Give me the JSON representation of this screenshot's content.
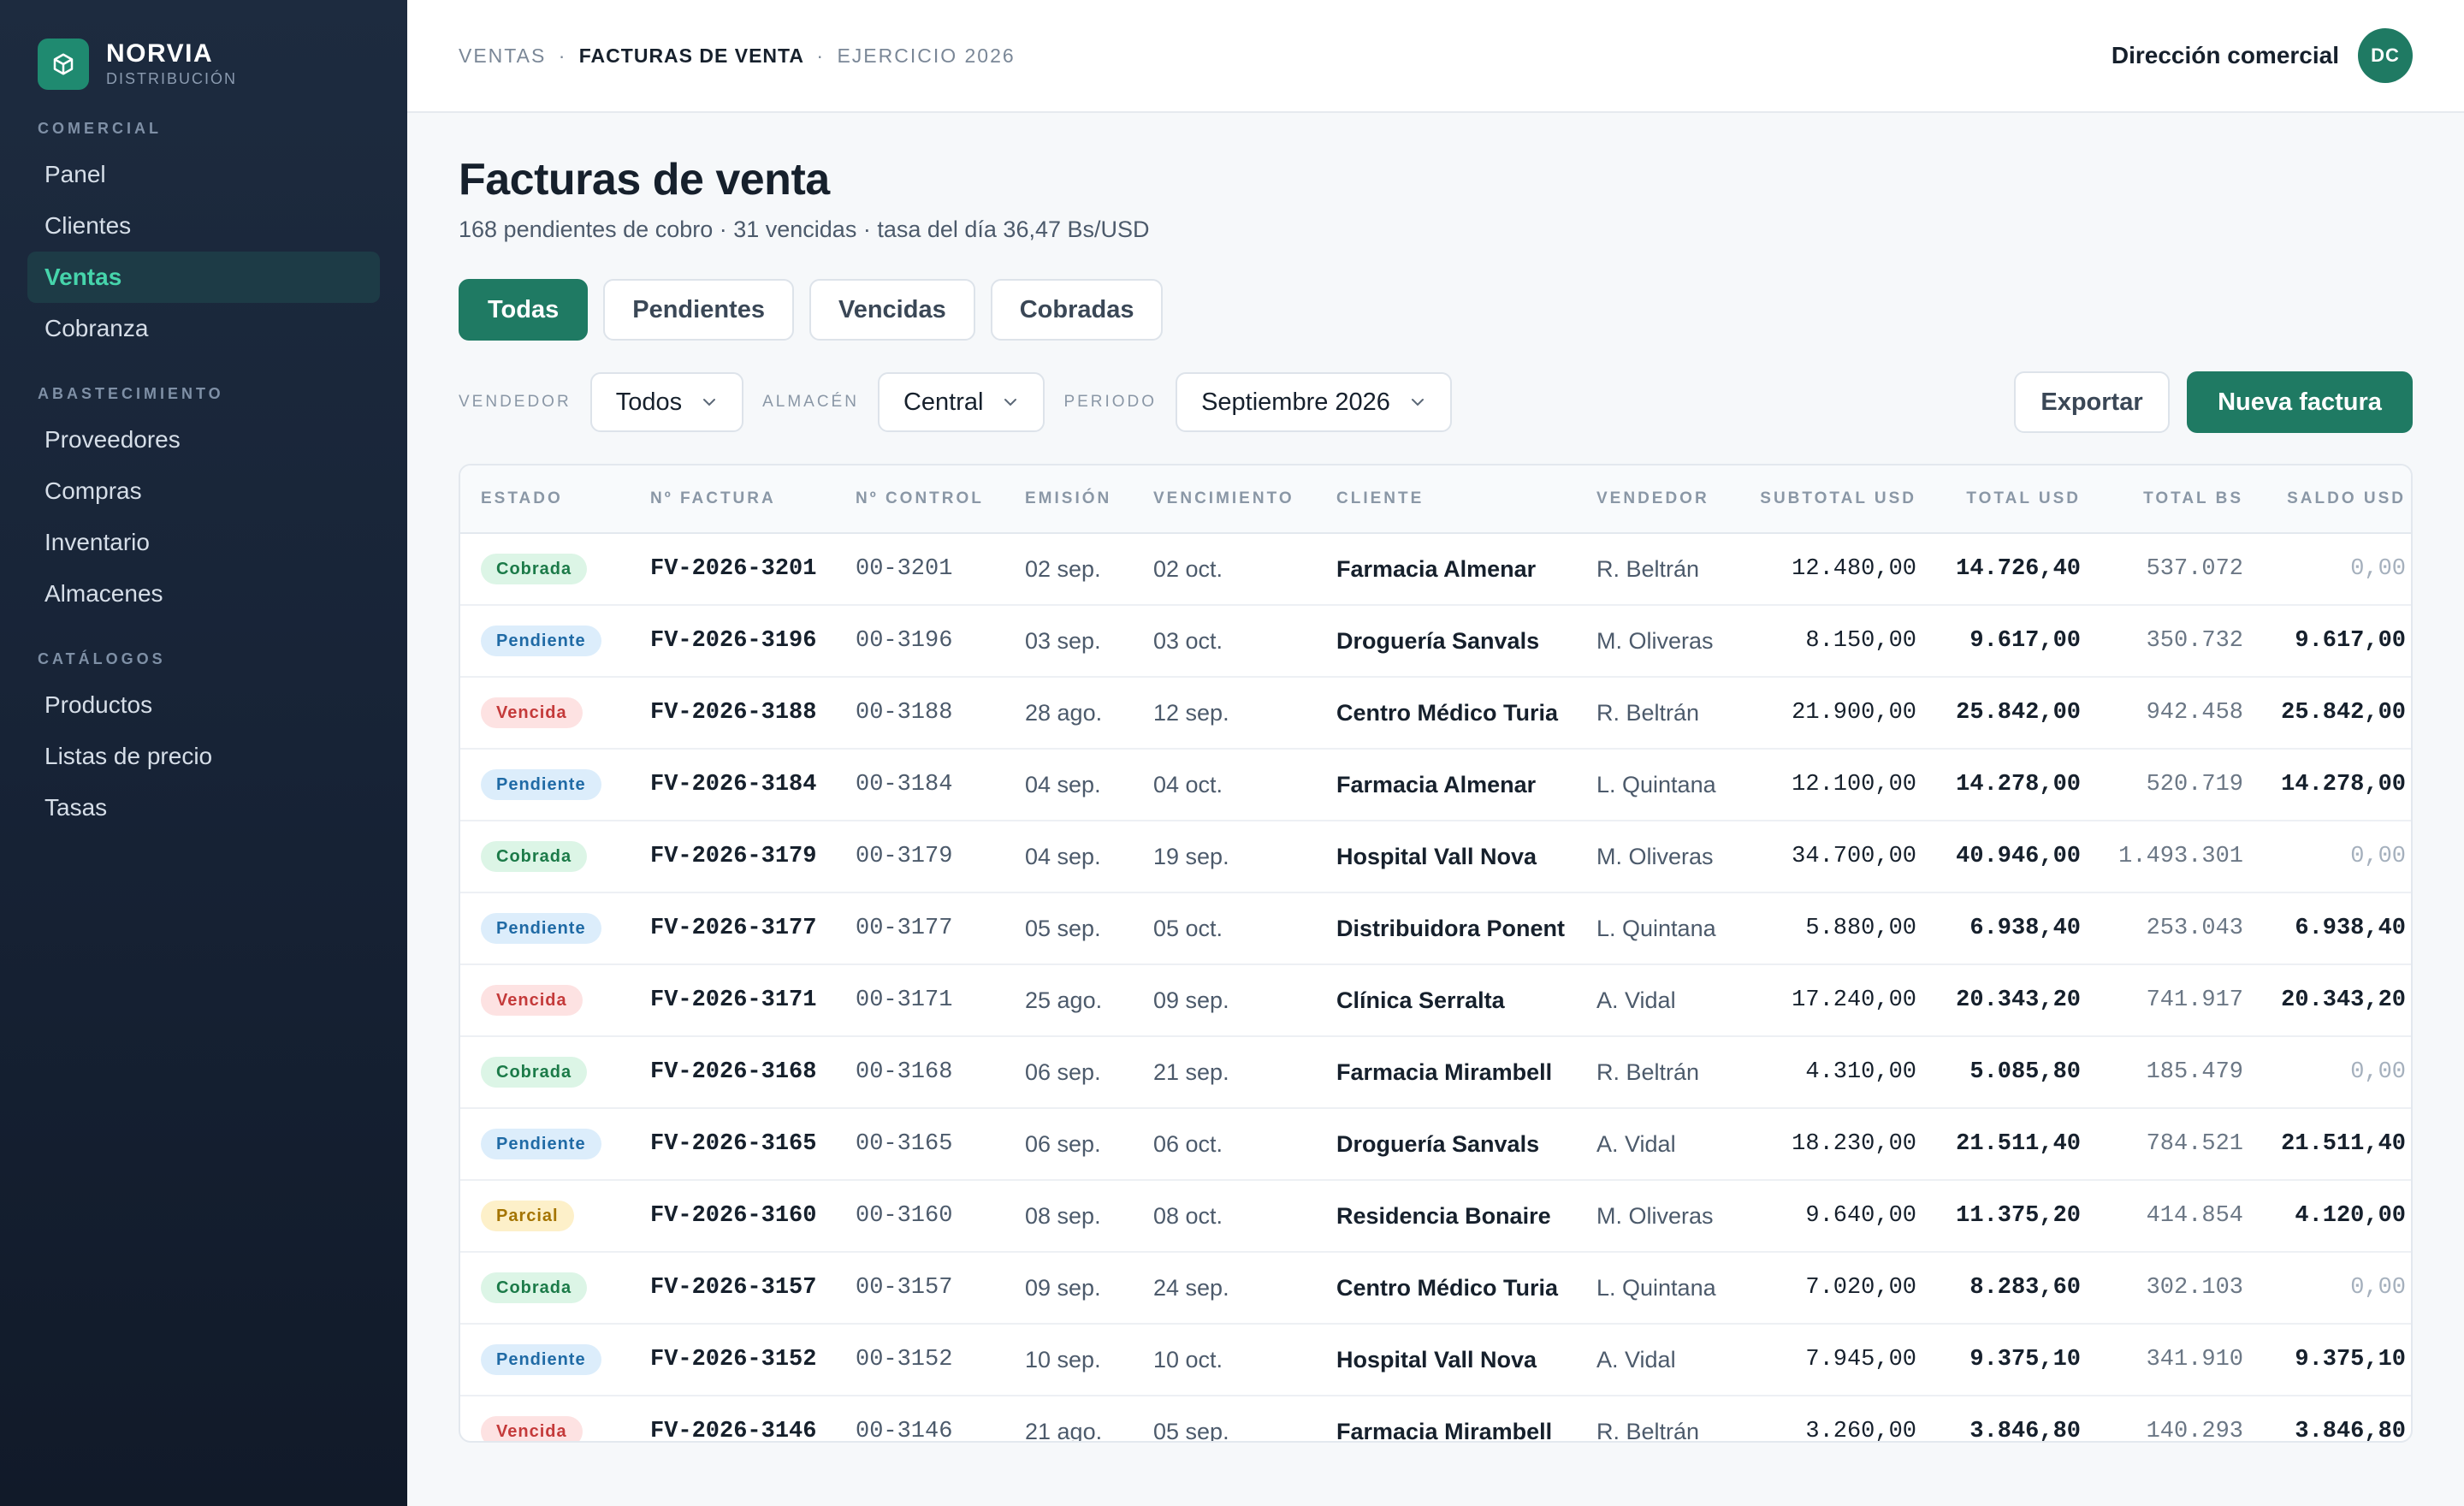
{
  "brand": {
    "name": "NORVIA",
    "subtitle": "DISTRIBUCIÓN",
    "logo_icon": "box-icon"
  },
  "sidebar": {
    "sections": [
      {
        "title": "COMERCIAL",
        "items": [
          {
            "label": "Panel"
          },
          {
            "label": "Clientes"
          },
          {
            "label": "Ventas",
            "active": true
          },
          {
            "label": "Cobranza"
          }
        ]
      },
      {
        "title": "ABASTECIMIENTO",
        "items": [
          {
            "label": "Proveedores"
          },
          {
            "label": "Compras"
          },
          {
            "label": "Inventario"
          },
          {
            "label": "Almacenes"
          }
        ]
      },
      {
        "title": "CATÁLOGOS",
        "items": [
          {
            "label": "Productos"
          },
          {
            "label": "Listas de precio"
          },
          {
            "label": "Tasas"
          }
        ]
      }
    ]
  },
  "header": {
    "breadcrumb": [
      "VENTAS",
      "FACTURAS DE VENTA",
      "EJERCICIO 2026"
    ],
    "separator": "·",
    "user_name": "Dirección comercial",
    "user_initials": "DC"
  },
  "page": {
    "title": "Facturas de venta",
    "subtitle": "168 pendientes de cobro · 31 vencidas · tasa del día 36,47 Bs/USD"
  },
  "tabs": [
    {
      "label": "Todas",
      "active": true
    },
    {
      "label": "Pendientes"
    },
    {
      "label": "Vencidas"
    },
    {
      "label": "Cobradas"
    }
  ],
  "filters": {
    "vendedor": {
      "label": "VENDEDOR",
      "value": "Todos"
    },
    "almacen": {
      "label": "ALMACÉN",
      "value": "Central"
    },
    "periodo": {
      "label": "PERIODO",
      "value": "Septiembre 2026"
    }
  },
  "actions": {
    "export_label": "Exportar",
    "new_label": "Nueva factura"
  },
  "colors": {
    "accent": "#1f7a63",
    "sidebar_active_text": "#46d4ab"
  },
  "table": {
    "columns": [
      "ESTADO",
      "Nº FACTURA",
      "Nº CONTROL",
      "EMISIÓN",
      "VENCIMIENTO",
      "CLIENTE",
      "VENDEDOR",
      "SUBTOTAL USD",
      "TOTAL USD",
      "TOTAL BS",
      "SALDO USD"
    ],
    "rows": [
      {
        "estado": "Cobrada",
        "factura": "FV-2026-3201",
        "control": "00-3201",
        "emision": "02 sep.",
        "vencimiento": "02 oct.",
        "cliente": "Farmacia Almenar",
        "vendedor": "R. Beltrán",
        "subtotal": "12.480,00",
        "total": "14.726,40",
        "total_bs": "537.072",
        "saldo": "0,00"
      },
      {
        "estado": "Pendiente",
        "factura": "FV-2026-3196",
        "control": "00-3196",
        "emision": "03 sep.",
        "vencimiento": "03 oct.",
        "cliente": "Droguería Sanvals",
        "vendedor": "M. Oliveras",
        "subtotal": "8.150,00",
        "total": "9.617,00",
        "total_bs": "350.732",
        "saldo": "9.617,00"
      },
      {
        "estado": "Vencida",
        "factura": "FV-2026-3188",
        "control": "00-3188",
        "emision": "28 ago.",
        "vencimiento": "12 sep.",
        "cliente": "Centro Médico Turia",
        "vendedor": "R. Beltrán",
        "subtotal": "21.900,00",
        "total": "25.842,00",
        "total_bs": "942.458",
        "saldo": "25.842,00"
      },
      {
        "estado": "Pendiente",
        "factura": "FV-2026-3184",
        "control": "00-3184",
        "emision": "04 sep.",
        "vencimiento": "04 oct.",
        "cliente": "Farmacia Almenar",
        "vendedor": "L. Quintana",
        "subtotal": "12.100,00",
        "total": "14.278,00",
        "total_bs": "520.719",
        "saldo": "14.278,00"
      },
      {
        "estado": "Cobrada",
        "factura": "FV-2026-3179",
        "control": "00-3179",
        "emision": "04 sep.",
        "vencimiento": "19 sep.",
        "cliente": "Hospital Vall Nova",
        "vendedor": "M. Oliveras",
        "subtotal": "34.700,00",
        "total": "40.946,00",
        "total_bs": "1.493.301",
        "saldo": "0,00"
      },
      {
        "estado": "Pendiente",
        "factura": "FV-2026-3177",
        "control": "00-3177",
        "emision": "05 sep.",
        "vencimiento": "05 oct.",
        "cliente": "Distribuidora Ponent",
        "vendedor": "L. Quintana",
        "subtotal": "5.880,00",
        "total": "6.938,40",
        "total_bs": "253.043",
        "saldo": "6.938,40"
      },
      {
        "estado": "Vencida",
        "factura": "FV-2026-3171",
        "control": "00-3171",
        "emision": "25 ago.",
        "vencimiento": "09 sep.",
        "cliente": "Clínica Serralta",
        "vendedor": "A. Vidal",
        "subtotal": "17.240,00",
        "total": "20.343,20",
        "total_bs": "741.917",
        "saldo": "20.343,20"
      },
      {
        "estado": "Cobrada",
        "factura": "FV-2026-3168",
        "control": "00-3168",
        "emision": "06 sep.",
        "vencimiento": "21 sep.",
        "cliente": "Farmacia Mirambell",
        "vendedor": "R. Beltrán",
        "subtotal": "4.310,00",
        "total": "5.085,80",
        "total_bs": "185.479",
        "saldo": "0,00"
      },
      {
        "estado": "Pendiente",
        "factura": "FV-2026-3165",
        "control": "00-3165",
        "emision": "06 sep.",
        "vencimiento": "06 oct.",
        "cliente": "Droguería Sanvals",
        "vendedor": "A. Vidal",
        "subtotal": "18.230,00",
        "total": "21.511,40",
        "total_bs": "784.521",
        "saldo": "21.511,40"
      },
      {
        "estado": "Parcial",
        "factura": "FV-2026-3160",
        "control": "00-3160",
        "emision": "08 sep.",
        "vencimiento": "08 oct.",
        "cliente": "Residencia Bonaire",
        "vendedor": "M. Oliveras",
        "subtotal": "9.640,00",
        "total": "11.375,20",
        "total_bs": "414.854",
        "saldo": "4.120,00"
      },
      {
        "estado": "Cobrada",
        "factura": "FV-2026-3157",
        "control": "00-3157",
        "emision": "09 sep.",
        "vencimiento": "24 sep.",
        "cliente": "Centro Médico Turia",
        "vendedor": "L. Quintana",
        "subtotal": "7.020,00",
        "total": "8.283,60",
        "total_bs": "302.103",
        "saldo": "0,00"
      },
      {
        "estado": "Pendiente",
        "factura": "FV-2026-3152",
        "control": "00-3152",
        "emision": "10 sep.",
        "vencimiento": "10 oct.",
        "cliente": "Hospital Vall Nova",
        "vendedor": "A. Vidal",
        "subtotal": "7.945,00",
        "total": "9.375,10",
        "total_bs": "341.910",
        "saldo": "9.375,10"
      },
      {
        "estado": "Vencida",
        "factura": "FV-2026-3146",
        "control": "00-3146",
        "emision": "21 ago.",
        "vencimiento": "05 sep.",
        "cliente": "Farmacia Mirambell",
        "vendedor": "R. Beltrán",
        "subtotal": "3.260,00",
        "total": "3.846,80",
        "total_bs": "140.293",
        "saldo": "3.846,80"
      }
    ]
  }
}
